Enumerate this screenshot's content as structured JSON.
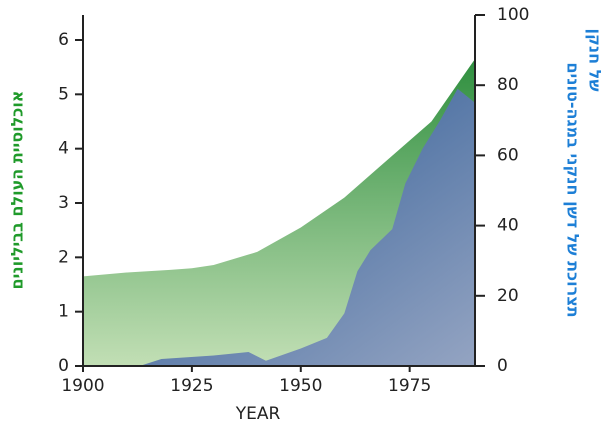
{
  "chart_data": {
    "type": "area",
    "x_label": "YEAR",
    "y_label": "אוכלוסיית העולם בביליונים",
    "y2_label_lines": [
      "תצרוכת של דשן חנקני במגה-טונים",
      "של חנקן"
    ],
    "xlim": [
      1900,
      1990
    ],
    "xticks": [
      1900,
      1925,
      1950,
      1975
    ],
    "ylim": [
      0,
      6.46
    ],
    "yticks": [
      0,
      1,
      2,
      3,
      4,
      5,
      6
    ],
    "y2lim": [
      0,
      100
    ],
    "y2ticks": [
      0,
      20,
      40,
      60,
      80,
      100
    ],
    "series": [
      {
        "color": "#2f8f3f",
        "x": [
          1900,
          1910,
          1920,
          1925,
          1930,
          1940,
          1950,
          1960,
          1970,
          1980,
          1990
        ],
        "values": [
          1.65,
          1.72,
          1.77,
          1.8,
          1.86,
          2.1,
          2.55,
          3.1,
          3.8,
          4.5,
          5.65
        ]
      },
      {
        "color": "#1d4f8e",
        "axis": "y2",
        "x": [
          1900,
          1913,
          1918,
          1930,
          1938,
          1942,
          1950,
          1956,
          1960,
          1963,
          1966,
          1971,
          1974,
          1978,
          1982,
          1986,
          1990
        ],
        "values": [
          0,
          0,
          2,
          3,
          4,
          1.5,
          5,
          8,
          15,
          27,
          33,
          39,
          52,
          62,
          70,
          79,
          75
        ]
      }
    ]
  }
}
